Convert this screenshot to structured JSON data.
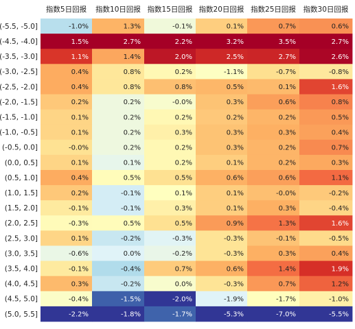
{
  "chart_data": {
    "type": "heatmap",
    "columns": [
      "指数5日回报",
      "指数10日回报",
      "指数15日回报",
      "指数20日回报",
      "指数25日回报",
      "指数30日回报"
    ],
    "rows": [
      "(-5.5, -5.0]",
      "(-4.5, -4.0]",
      "(-3.5, -3.0]",
      "(-3.0, -2.5]",
      "(-2.5, -2.0]",
      "(-2.0, -1.5]",
      "(-1.5, -1.0]",
      "(-1.0, -0.5]",
      "(-0.5, 0.0]",
      "(0.0, 0.5]",
      "(0.5, 1.0]",
      "(1.0, 1.5]",
      "(1.5, 2.0]",
      "(2.0, 2.5]",
      "(2.5, 3.0]",
      "(3.0, 3.5]",
      "(3.5, 4.0]",
      "(4.0, 4.5]",
      "(4.5, 5.0]",
      "(5.0, 5.5]"
    ],
    "labels": [
      [
        "-1.0%",
        "1.3%",
        "-0.1%",
        "0.1%",
        "0.7%",
        "0.6%"
      ],
      [
        "1.5%",
        "2.7%",
        "2.2%",
        "3.2%",
        "3.5%",
        "2.7%"
      ],
      [
        "1.1%",
        "1.4%",
        "2.0%",
        "2.5%",
        "2.7%",
        "2.6%"
      ],
      [
        "0.4%",
        "0.8%",
        "0.2%",
        "-1.1%",
        "-0.7%",
        "-0.8%"
      ],
      [
        "0.4%",
        "0.8%",
        "0.8%",
        "0.5%",
        "0.1%",
        "1.6%"
      ],
      [
        "0.2%",
        "0.2%",
        "-0.0%",
        "0.3%",
        "0.6%",
        "0.8%"
      ],
      [
        "0.1%",
        "0.2%",
        "0.2%",
        "0.2%",
        "0.2%",
        "0.5%"
      ],
      [
        "0.1%",
        "0.2%",
        "0.3%",
        "0.3%",
        "0.3%",
        "0.4%"
      ],
      [
        "-0.0%",
        "0.2%",
        "0.2%",
        "0.3%",
        "0.2%",
        "0.7%"
      ],
      [
        "0.1%",
        "0.1%",
        "0.2%",
        "0.1%",
        "0.2%",
        "0.3%"
      ],
      [
        "0.4%",
        "0.5%",
        "0.5%",
        "0.6%",
        "0.6%",
        "1.1%"
      ],
      [
        "0.2%",
        "-0.1%",
        "0.1%",
        "0.1%",
        "-0.0%",
        "-0.2%"
      ],
      [
        "-0.1%",
        "-0.1%",
        "0.3%",
        "0.1%",
        "0.3%",
        "-0.4%"
      ],
      [
        "-0.3%",
        "0.5%",
        "0.5%",
        "0.9%",
        "1.3%",
        "1.6%"
      ],
      [
        "0.1%",
        "-0.2%",
        "-0.3%",
        "-0.3%",
        "-0.1%",
        "-0.5%"
      ],
      [
        "-0.6%",
        "0.0%",
        "-0.2%",
        "-0.3%",
        "0.3%",
        "0.4%"
      ],
      [
        "-0.1%",
        "-0.4%",
        "0.7%",
        "0.6%",
        "1.4%",
        "1.9%"
      ],
      [
        "0.3%",
        "-0.2%",
        "0.0%",
        "-0.3%",
        "0.7%",
        "1.2%"
      ],
      [
        "-0.4%",
        "-1.5%",
        "-2.0%",
        "-1.9%",
        "-1.7%",
        "-1.0%"
      ],
      [
        "-2.2%",
        "-1.8%",
        "-1.7%",
        "-5.3%",
        "-7.0%",
        "-5.5%"
      ]
    ],
    "values": [
      [
        -1.0,
        1.3,
        -0.1,
        0.1,
        0.7,
        0.6
      ],
      [
        1.5,
        2.7,
        2.2,
        3.2,
        3.5,
        2.7
      ],
      [
        1.1,
        1.4,
        2.0,
        2.5,
        2.7,
        2.6
      ],
      [
        0.4,
        0.8,
        0.2,
        -1.1,
        -0.7,
        -0.8
      ],
      [
        0.4,
        0.8,
        0.8,
        0.5,
        0.1,
        1.6
      ],
      [
        0.2,
        0.2,
        -0.0,
        0.3,
        0.6,
        0.8
      ],
      [
        0.1,
        0.2,
        0.2,
        0.2,
        0.2,
        0.5
      ],
      [
        0.1,
        0.2,
        0.3,
        0.3,
        0.3,
        0.4
      ],
      [
        -0.0,
        0.2,
        0.2,
        0.3,
        0.2,
        0.7
      ],
      [
        0.1,
        0.1,
        0.2,
        0.1,
        0.2,
        0.3
      ],
      [
        0.4,
        0.5,
        0.5,
        0.6,
        0.6,
        1.1
      ],
      [
        0.2,
        -0.1,
        0.1,
        0.1,
        -0.0,
        -0.2
      ],
      [
        -0.1,
        -0.1,
        0.3,
        0.1,
        0.3,
        -0.4
      ],
      [
        -0.3,
        0.5,
        0.5,
        0.9,
        1.3,
        1.6
      ],
      [
        0.1,
        -0.2,
        -0.3,
        -0.3,
        -0.1,
        -0.5
      ],
      [
        -0.6,
        0.0,
        -0.2,
        -0.3,
        0.3,
        0.4
      ],
      [
        -0.1,
        -0.4,
        0.7,
        0.6,
        1.4,
        1.9
      ],
      [
        0.3,
        -0.2,
        0.0,
        -0.3,
        0.7,
        1.2
      ],
      [
        -0.4,
        -1.5,
        -2.0,
        -1.9,
        -1.7,
        -1.0
      ],
      [
        -2.2,
        -1.8,
        -1.7,
        -5.3,
        -7.0,
        -5.5
      ]
    ],
    "colormap": "RdYlBu_r, diverging, scaled per column"
  }
}
